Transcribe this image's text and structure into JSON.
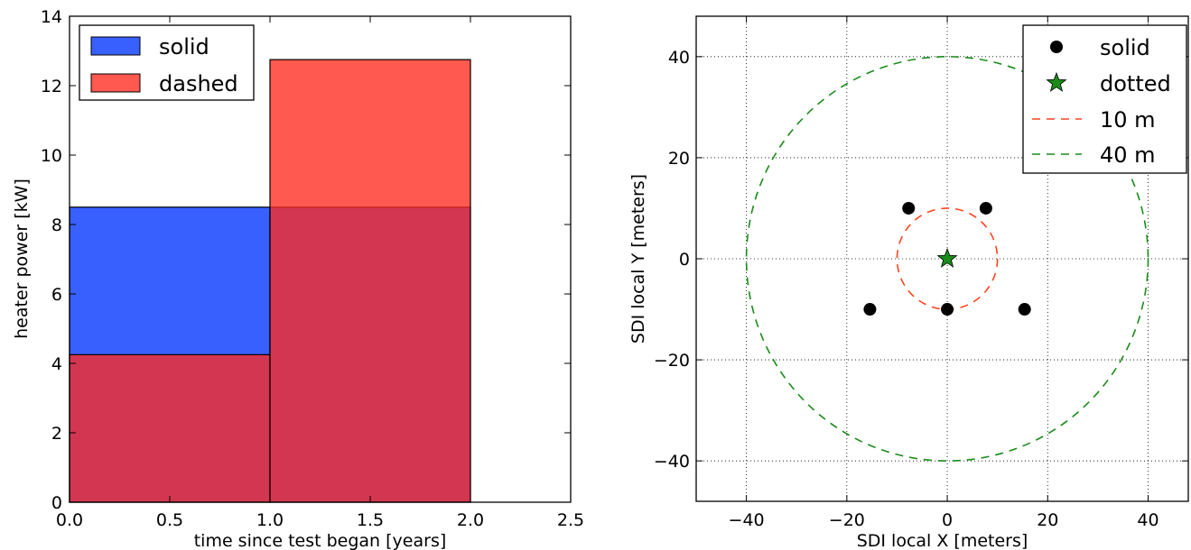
{
  "chart_data": [
    {
      "type": "bar",
      "xlabel": "time since test began [years]",
      "ylabel": "heater power [kW]",
      "xlim": [
        0.0,
        2.5
      ],
      "ylim": [
        0,
        14
      ],
      "xticks": [
        0.0,
        0.5,
        1.0,
        1.5,
        2.0,
        2.5
      ],
      "xtick_labels": [
        "0.0",
        "0.5",
        "1.0",
        "1.5",
        "2.0",
        "2.5"
      ],
      "yticks": [
        0,
        2,
        4,
        6,
        8,
        10,
        12,
        14
      ],
      "ytick_labels": [
        "0",
        "2",
        "4",
        "6",
        "8",
        "10",
        "12",
        "14"
      ],
      "grid": false,
      "legend_position": "top-left",
      "series": [
        {
          "name": "solid",
          "color": "#0033ff",
          "bins": [
            {
              "x0": 0.0,
              "x1": 1.0,
              "value": 8.5
            },
            {
              "x0": 1.0,
              "x1": 2.0,
              "value": 8.5
            }
          ]
        },
        {
          "name": "dashed",
          "color": "#ff2a1f",
          "bins": [
            {
              "x0": 0.0,
              "x1": 1.0,
              "value": 4.25
            },
            {
              "x0": 1.0,
              "x1": 2.0,
              "value": 12.75
            }
          ]
        }
      ]
    },
    {
      "type": "scatter",
      "xlabel": "SDI local X [meters]",
      "ylabel": "SDI local Y [meters]",
      "xlim": [
        -50,
        48
      ],
      "ylim": [
        -48,
        48
      ],
      "xticks": [
        -40,
        -20,
        0,
        20,
        40
      ],
      "xtick_labels": [
        "−40",
        "−20",
        "0",
        "20",
        "40"
      ],
      "yticks": [
        -40,
        -20,
        0,
        20,
        40
      ],
      "ytick_labels": [
        "−40",
        "−20",
        "0",
        "20",
        "40"
      ],
      "grid": true,
      "legend_position": "top-right",
      "series": [
        {
          "name": "solid",
          "marker": "circle",
          "color": "#000000",
          "points": [
            [
              -7.7,
              10
            ],
            [
              7.7,
              10
            ],
            [
              -15.4,
              -10
            ],
            [
              0,
              -10
            ],
            [
              15.4,
              -10
            ]
          ]
        },
        {
          "name": "dotted",
          "marker": "star",
          "color": "#1a8c1a",
          "points": [
            [
              0,
              0
            ]
          ]
        },
        {
          "name": "10 m",
          "kind": "circle-outline",
          "line": "dashed",
          "color": "#ff4422",
          "center": [
            0,
            0
          ],
          "radius": 10
        },
        {
          "name": "40 m",
          "kind": "circle-outline",
          "line": "dashed",
          "color": "#1a8c1a",
          "center": [
            0,
            0
          ],
          "radius": 40
        }
      ]
    }
  ]
}
